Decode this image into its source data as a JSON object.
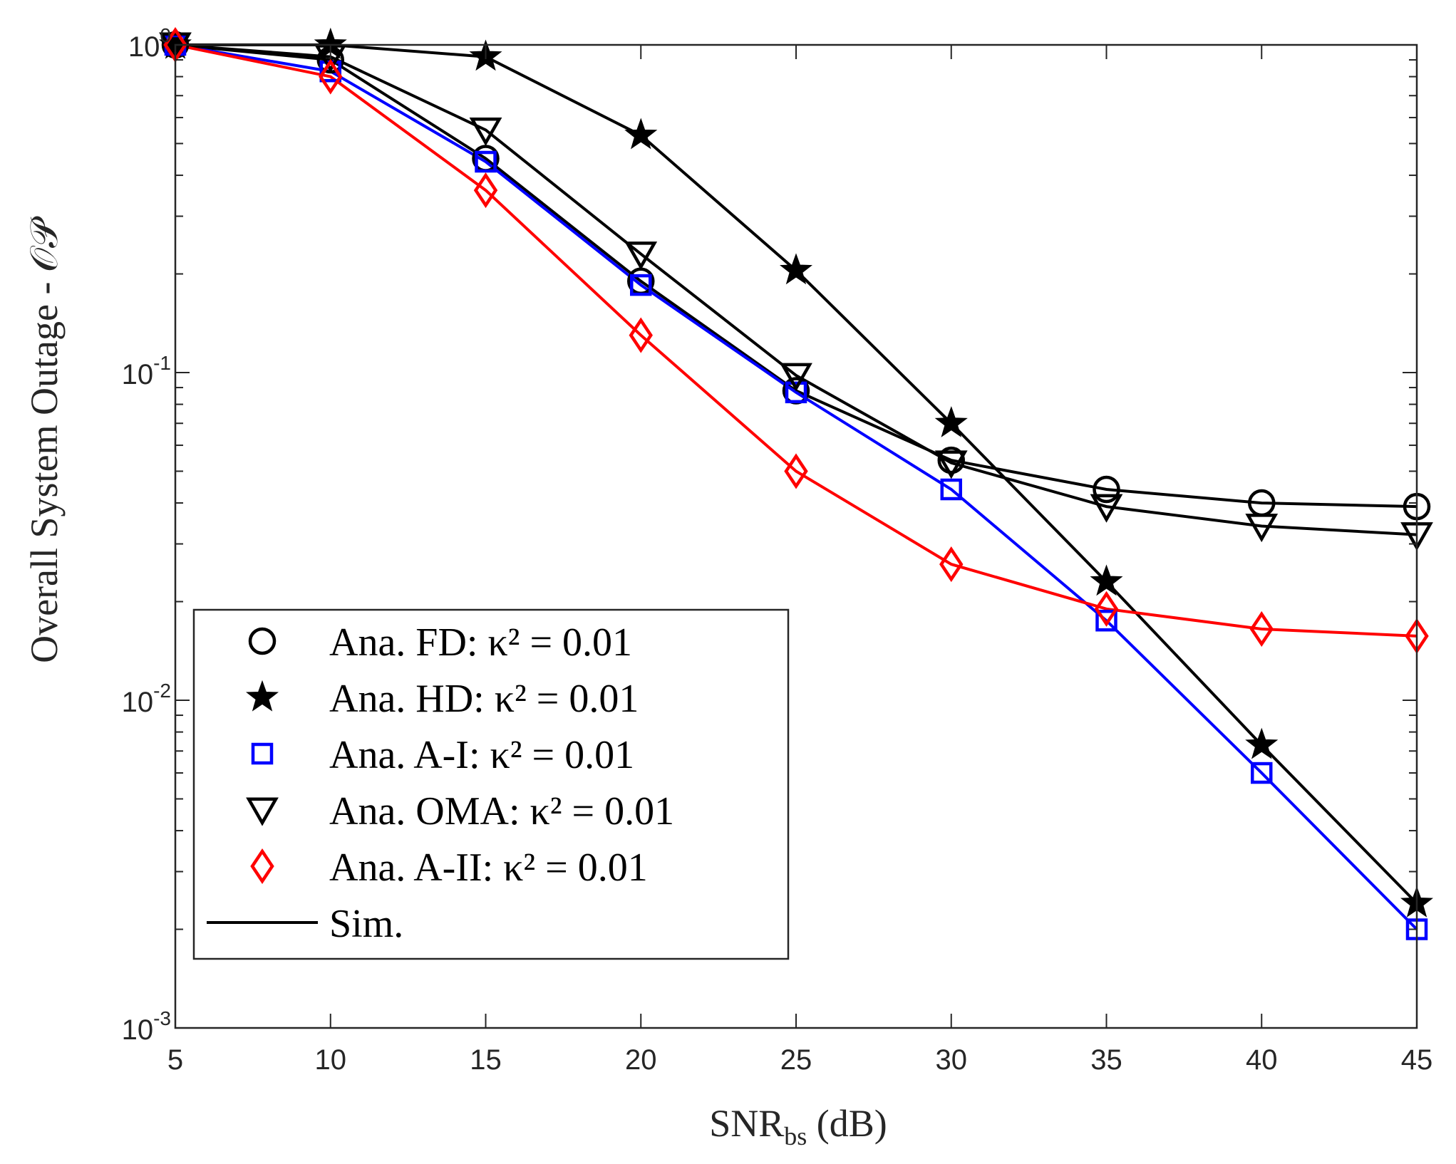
{
  "chart_data": {
    "type": "line",
    "title": "",
    "xlabel": "SNR",
    "xlabel_sub": "bs",
    "xlabel_unit": "(dB)",
    "ylabel": "Overall System Outage - 𝒪𝒫",
    "yscale": "log",
    "xlim": [
      5,
      45
    ],
    "ylim": [
      0.001,
      1
    ],
    "grid": false,
    "legend_position": "bottom-left",
    "x_ticks": [
      5,
      10,
      15,
      20,
      25,
      30,
      35,
      40,
      45
    ],
    "y_ticks": [
      {
        "value": 1,
        "base": "10",
        "exp": "0"
      },
      {
        "value": 0.1,
        "base": "10",
        "exp": "-1"
      },
      {
        "value": 0.01,
        "base": "10",
        "exp": "-2"
      },
      {
        "value": 0.001,
        "base": "10",
        "exp": "-3"
      }
    ],
    "x": [
      5,
      10,
      15,
      20,
      25,
      30,
      35,
      40,
      45
    ],
    "series": [
      {
        "name": "FD",
        "legend": "Ana.  FD: κ² = 0.01",
        "color": "#000000",
        "marker": "circle",
        "values": [
          1.0,
          0.9,
          0.45,
          0.19,
          0.088,
          0.054,
          0.044,
          0.04,
          0.039
        ]
      },
      {
        "name": "HD",
        "legend": "Ana.  HD: κ² = 0.01",
        "color": "#000000",
        "marker": "star",
        "values": [
          1.0,
          1.0,
          0.92,
          0.53,
          0.205,
          0.07,
          0.023,
          0.0073,
          0.0024
        ]
      },
      {
        "name": "A-I",
        "legend": "Ana.  A-I: κ² = 0.01",
        "color": "#0000ff",
        "marker": "square",
        "values": [
          1.0,
          0.83,
          0.44,
          0.185,
          0.087,
          0.044,
          0.0175,
          0.006,
          0.002
        ]
      },
      {
        "name": "OMA",
        "legend": "Ana.  OMA: κ² = 0.01",
        "color": "#000000",
        "marker": "triangle-down",
        "values": [
          1.0,
          0.92,
          0.55,
          0.23,
          0.098,
          0.053,
          0.039,
          0.034,
          0.032
        ]
      },
      {
        "name": "A-II",
        "legend": "Ana.  A-II: κ² = 0.01",
        "color": "#ff0000",
        "marker": "diamond",
        "values": [
          1.0,
          0.8,
          0.36,
          0.13,
          0.05,
          0.026,
          0.019,
          0.0165,
          0.0157
        ]
      }
    ],
    "sim_legend": "Sim."
  }
}
